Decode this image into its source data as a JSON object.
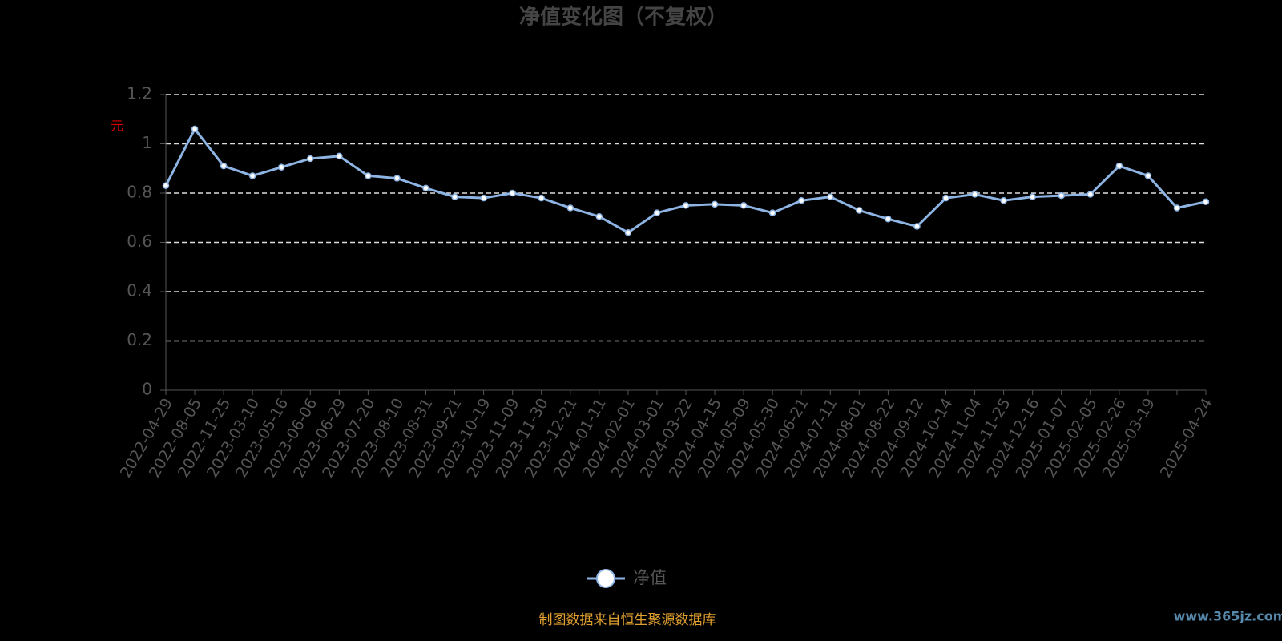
{
  "chart_data": {
    "type": "line",
    "title": "净值变化图（不复权）",
    "y_label": "元",
    "categories": [
      "2022-04-29",
      "2022-08-05",
      "2022-11-25",
      "2023-03-10",
      "2023-05-16",
      "2023-06-06",
      "2023-06-29",
      "2023-07-20",
      "2023-08-10",
      "2023-08-31",
      "2023-09-21",
      "2023-10-19",
      "2023-11-09",
      "2023-11-30",
      "2023-12-21",
      "2024-01-11",
      "2024-02-01",
      "2024-03-01",
      "2024-03-22",
      "2024-04-15",
      "2024-05-09",
      "2024-05-30",
      "2024-06-21",
      "2024-07-11",
      "2024-08-01",
      "2024-08-22",
      "2024-09-12",
      "2024-10-14",
      "2024-11-04",
      "2024-11-25",
      "2024-12-16",
      "2025-01-07",
      "2025-02-05",
      "2025-02-26",
      "2025-03-19",
      null,
      "2025-04-24"
    ],
    "series": [
      {
        "name": "净值",
        "color": "#8eb4e3",
        "values": [
          0.83,
          1.06,
          0.91,
          0.87,
          0.905,
          0.94,
          0.95,
          0.87,
          0.86,
          0.82,
          0.785,
          0.78,
          0.8,
          0.78,
          0.74,
          0.705,
          0.64,
          0.72,
          0.75,
          0.755,
          0.75,
          0.72,
          0.77,
          0.785,
          0.73,
          0.695,
          0.665,
          0.78,
          0.795,
          0.77,
          0.785,
          0.79,
          0.795,
          0.91,
          0.87,
          0.74,
          0.765
        ]
      }
    ],
    "ylim": [
      0,
      1.2
    ],
    "yticks": [
      0,
      0.2,
      0.4,
      0.6,
      0.8,
      1,
      1.2
    ],
    "grid": true,
    "footer": "制图数据来自恒生聚源数据库",
    "watermark": "www.365jz.com"
  }
}
